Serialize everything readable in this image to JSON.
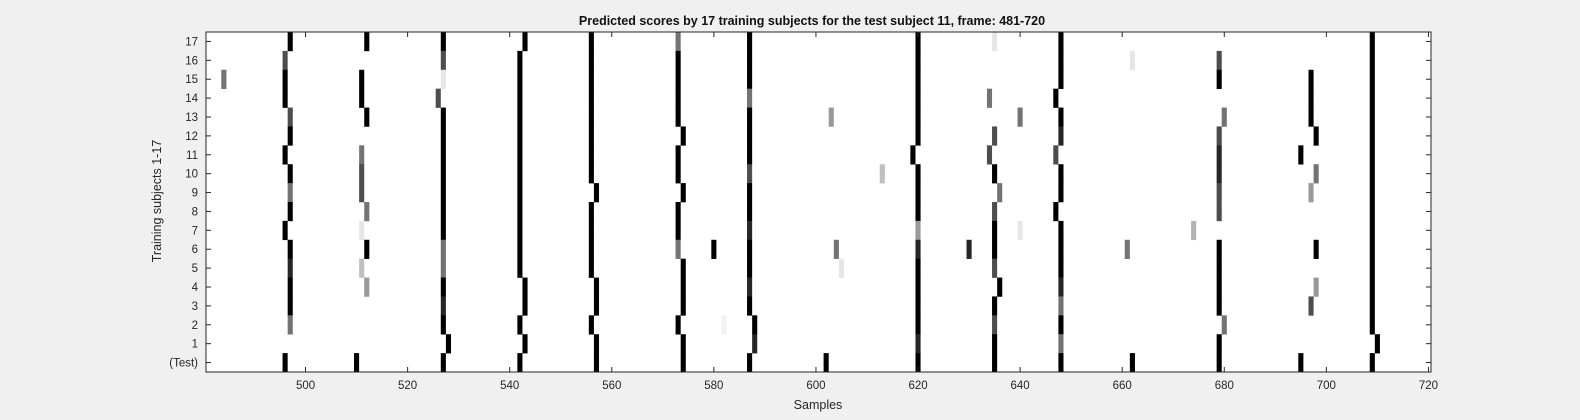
{
  "chart_data": {
    "type": "heatmap",
    "title": "Predicted scores by 17 training subjects for the test subject 11, frame: 481-720",
    "xlabel": "Samples",
    "ylabel": "Training subjects 1-17",
    "xlim": [
      481,
      720
    ],
    "xticks": [
      500,
      520,
      540,
      560,
      580,
      600,
      620,
      640,
      660,
      680,
      700,
      720
    ],
    "yticks": [
      "17",
      "16",
      "15",
      "14",
      "13",
      "12",
      "11",
      "10",
      "9",
      "8",
      "7",
      "6",
      "5",
      "4",
      "3",
      "2",
      "1",
      "(Test)"
    ],
    "colormap": "gray-inverted",
    "background": "#ffffff",
    "rows": [
      {
        "label": "17",
        "cells": [
          [
            497,
            1.0
          ],
          [
            512,
            1.0
          ],
          [
            527,
            1.0
          ],
          [
            543,
            1.0
          ],
          [
            556,
            1.0
          ],
          [
            573,
            0.55
          ],
          [
            587,
            1.0
          ],
          [
            620,
            1.0
          ],
          [
            635,
            0.1
          ],
          [
            648,
            1.0
          ],
          [
            709,
            1.0
          ]
        ]
      },
      {
        "label": "16",
        "cells": [
          [
            496,
            0.7
          ],
          [
            527,
            0.7
          ],
          [
            542,
            1.0
          ],
          [
            556,
            1.0
          ],
          [
            573,
            1.0
          ],
          [
            587,
            1.0
          ],
          [
            620,
            1.0
          ],
          [
            648,
            1.0
          ],
          [
            662,
            0.1
          ],
          [
            679,
            0.7
          ],
          [
            709,
            1.0
          ]
        ]
      },
      {
        "label": "15",
        "cells": [
          [
            484,
            0.55
          ],
          [
            496,
            1.0
          ],
          [
            511,
            1.0
          ],
          [
            527,
            0.1
          ],
          [
            542,
            1.0
          ],
          [
            556,
            1.0
          ],
          [
            573,
            1.0
          ],
          [
            587,
            1.0
          ],
          [
            620,
            1.0
          ],
          [
            648,
            1.0
          ],
          [
            679,
            1.0
          ],
          [
            697,
            1.0
          ],
          [
            709,
            1.0
          ]
        ]
      },
      {
        "label": "14",
        "cells": [
          [
            496,
            1.0
          ],
          [
            511,
            1.0
          ],
          [
            526,
            0.7
          ],
          [
            542,
            1.0
          ],
          [
            556,
            1.0
          ],
          [
            573,
            1.0
          ],
          [
            587,
            0.55
          ],
          [
            620,
            1.0
          ],
          [
            634,
            0.55
          ],
          [
            647,
            1.0
          ],
          [
            697,
            1.0
          ],
          [
            709,
            1.0
          ]
        ]
      },
      {
        "label": "13",
        "cells": [
          [
            497,
            0.7
          ],
          [
            512,
            1.0
          ],
          [
            527,
            1.0
          ],
          [
            542,
            1.0
          ],
          [
            556,
            1.0
          ],
          [
            573,
            1.0
          ],
          [
            587,
            1.0
          ],
          [
            603,
            0.4
          ],
          [
            620,
            1.0
          ],
          [
            640,
            0.55
          ],
          [
            648,
            1.0
          ],
          [
            680,
            0.55
          ],
          [
            697,
            1.0
          ],
          [
            709,
            1.0
          ]
        ]
      },
      {
        "label": "12",
        "cells": [
          [
            497,
            1.0
          ],
          [
            527,
            1.0
          ],
          [
            542,
            1.0
          ],
          [
            556,
            1.0
          ],
          [
            574,
            1.0
          ],
          [
            587,
            1.0
          ],
          [
            620,
            1.0
          ],
          [
            635,
            0.7
          ],
          [
            648,
            0.85
          ],
          [
            679,
            0.7
          ],
          [
            698,
            1.0
          ],
          [
            709,
            1.0
          ]
        ]
      },
      {
        "label": "11",
        "cells": [
          [
            496,
            1.0
          ],
          [
            511,
            0.55
          ],
          [
            527,
            1.0
          ],
          [
            542,
            1.0
          ],
          [
            556,
            1.0
          ],
          [
            573,
            1.0
          ],
          [
            587,
            1.0
          ],
          [
            619,
            1.0
          ],
          [
            634,
            0.7
          ],
          [
            647,
            0.7
          ],
          [
            679,
            0.85
          ],
          [
            695,
            1.0
          ],
          [
            709,
            1.0
          ]
        ]
      },
      {
        "label": "10",
        "cells": [
          [
            497,
            1.0
          ],
          [
            511,
            0.7
          ],
          [
            527,
            1.0
          ],
          [
            542,
            1.0
          ],
          [
            556,
            1.0
          ],
          [
            573,
            1.0
          ],
          [
            587,
            0.7
          ],
          [
            613,
            0.25
          ],
          [
            620,
            1.0
          ],
          [
            635,
            1.0
          ],
          [
            648,
            1.0
          ],
          [
            679,
            0.85
          ],
          [
            698,
            0.55
          ],
          [
            709,
            1.0
          ]
        ]
      },
      {
        "label": "9",
        "cells": [
          [
            497,
            0.55
          ],
          [
            511,
            0.7
          ],
          [
            527,
            1.0
          ],
          [
            542,
            1.0
          ],
          [
            557,
            1.0
          ],
          [
            574,
            1.0
          ],
          [
            587,
            1.0
          ],
          [
            620,
            1.0
          ],
          [
            636,
            0.55
          ],
          [
            648,
            1.0
          ],
          [
            679,
            0.7
          ],
          [
            697,
            0.4
          ],
          [
            709,
            1.0
          ]
        ]
      },
      {
        "label": "8",
        "cells": [
          [
            497,
            1.0
          ],
          [
            512,
            0.55
          ],
          [
            527,
            1.0
          ],
          [
            542,
            1.0
          ],
          [
            556,
            1.0
          ],
          [
            573,
            1.0
          ],
          [
            587,
            1.0
          ],
          [
            620,
            1.0
          ],
          [
            635,
            0.7
          ],
          [
            647,
            1.0
          ],
          [
            679,
            0.7
          ],
          [
            709,
            1.0
          ]
        ]
      },
      {
        "label": "7",
        "cells": [
          [
            496,
            1.0
          ],
          [
            511,
            0.1
          ],
          [
            527,
            1.0
          ],
          [
            542,
            1.0
          ],
          [
            556,
            1.0
          ],
          [
            573,
            1.0
          ],
          [
            587,
            0.85
          ],
          [
            620,
            0.4
          ],
          [
            635,
            1.0
          ],
          [
            640,
            0.1
          ],
          [
            648,
            1.0
          ],
          [
            674,
            0.3
          ],
          [
            709,
            1.0
          ]
        ]
      },
      {
        "label": "6",
        "cells": [
          [
            497,
            1.0
          ],
          [
            512,
            1.0
          ],
          [
            527,
            0.55
          ],
          [
            542,
            1.0
          ],
          [
            556,
            1.0
          ],
          [
            573,
            0.55
          ],
          [
            580,
            1.0
          ],
          [
            587,
            1.0
          ],
          [
            604,
            0.55
          ],
          [
            620,
            0.85
          ],
          [
            630,
            0.85
          ],
          [
            635,
            1.0
          ],
          [
            648,
            1.0
          ],
          [
            661,
            0.55
          ],
          [
            679,
            1.0
          ],
          [
            698,
            1.0
          ],
          [
            709,
            1.0
          ]
        ]
      },
      {
        "label": "5",
        "cells": [
          [
            497,
            0.85
          ],
          [
            511,
            0.25
          ],
          [
            527,
            0.55
          ],
          [
            542,
            1.0
          ],
          [
            556,
            1.0
          ],
          [
            574,
            1.0
          ],
          [
            587,
            1.0
          ],
          [
            605,
            0.1
          ],
          [
            620,
            1.0
          ],
          [
            635,
            0.7
          ],
          [
            648,
            1.0
          ],
          [
            679,
            1.0
          ],
          [
            709,
            1.0
          ]
        ]
      },
      {
        "label": "4",
        "cells": [
          [
            497,
            1.0
          ],
          [
            512,
            0.4
          ],
          [
            527,
            1.0
          ],
          [
            543,
            1.0
          ],
          [
            557,
            1.0
          ],
          [
            574,
            1.0
          ],
          [
            587,
            0.85
          ],
          [
            620,
            1.0
          ],
          [
            636,
            1.0
          ],
          [
            648,
            0.85
          ],
          [
            679,
            1.0
          ],
          [
            698,
            0.4
          ],
          [
            709,
            1.0
          ]
        ]
      },
      {
        "label": "3",
        "cells": [
          [
            497,
            1.0
          ],
          [
            527,
            0.85
          ],
          [
            543,
            1.0
          ],
          [
            557,
            1.0
          ],
          [
            574,
            1.0
          ],
          [
            587,
            1.0
          ],
          [
            620,
            1.0
          ],
          [
            635,
            1.0
          ],
          [
            648,
            0.55
          ],
          [
            679,
            1.0
          ],
          [
            697,
            0.7
          ],
          [
            709,
            1.0
          ]
        ]
      },
      {
        "label": "2",
        "cells": [
          [
            497,
            0.55
          ],
          [
            527,
            1.0
          ],
          [
            542,
            1.0
          ],
          [
            556,
            1.0
          ],
          [
            573,
            1.0
          ],
          [
            582,
            0.05
          ],
          [
            588,
            1.0
          ],
          [
            620,
            1.0
          ],
          [
            635,
            0.7
          ],
          [
            648,
            1.0
          ],
          [
            680,
            0.55
          ],
          [
            709,
            1.0
          ]
        ]
      },
      {
        "label": "1",
        "cells": [
          [
            528,
            1.0
          ],
          [
            543,
            1.0
          ],
          [
            557,
            1.0
          ],
          [
            574,
            1.0
          ],
          [
            588,
            0.85
          ],
          [
            620,
            0.85
          ],
          [
            635,
            1.0
          ],
          [
            648,
            0.55
          ],
          [
            679,
            1.0
          ],
          [
            710,
            1.0
          ]
        ]
      },
      {
        "label": "(Test)",
        "cells": [
          [
            496,
            1.0
          ],
          [
            510,
            1.0
          ],
          [
            527,
            1.0
          ],
          [
            542,
            1.0
          ],
          [
            557,
            1.0
          ],
          [
            574,
            1.0
          ],
          [
            587,
            1.0
          ],
          [
            602,
            1.0
          ],
          [
            620,
            1.0
          ],
          [
            635,
            1.0
          ],
          [
            648,
            1.0
          ],
          [
            662,
            1.0
          ],
          [
            679,
            1.0
          ],
          [
            695,
            1.0
          ],
          [
            709,
            1.0
          ]
        ]
      }
    ]
  }
}
